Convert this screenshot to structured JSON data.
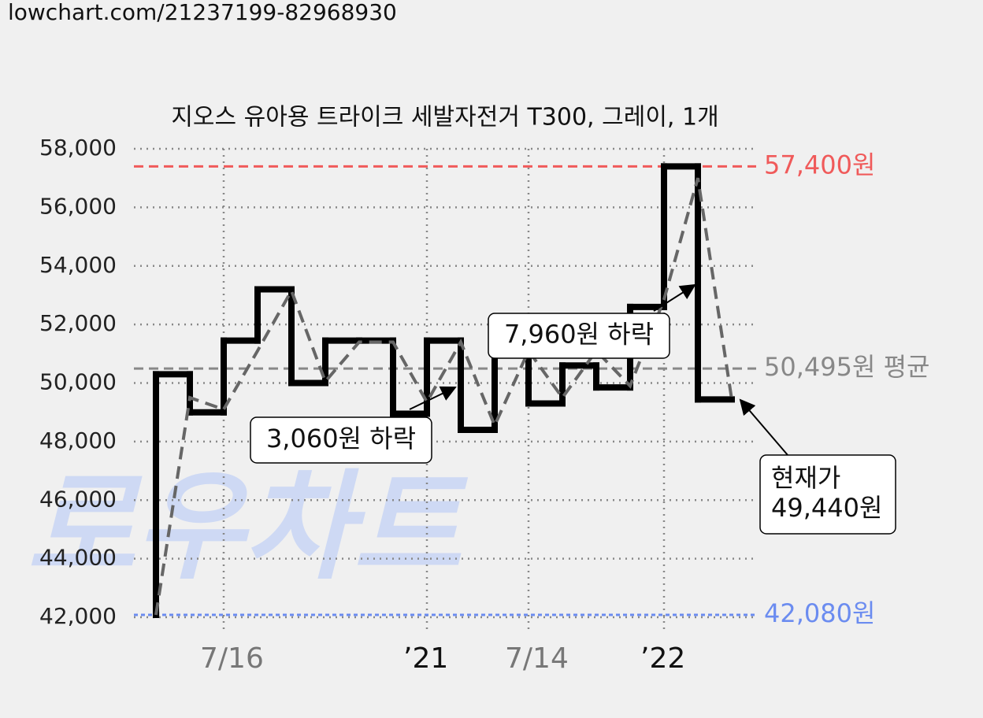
{
  "url": "lowchart.com/21237199-82968930",
  "watermark": "로우차트",
  "chart_data": {
    "type": "line",
    "title": "지오스 유아용 트라이크 세발자전거 T300, 그레이, 1개",
    "categories": [
      null,
      null,
      "7/16",
      null,
      null,
      null,
      null,
      null,
      "’21",
      null,
      null,
      "7/14",
      null,
      null,
      null,
      "’22",
      null,
      null
    ],
    "series": [
      {
        "color": "#000000",
        "style": "step",
        "values": [
          42080,
          50300,
          49000,
          51450,
          53200,
          50000,
          51450,
          51450,
          48950,
          51450,
          48400,
          51000,
          49300,
          50600,
          49850,
          52600,
          57400,
          49440
        ]
      },
      {
        "color": "#666666",
        "style": "dashed",
        "values": [
          42080,
          49500,
          49100,
          51100,
          53150,
          50050,
          51400,
          51400,
          49350,
          51400,
          48550,
          51100,
          49500,
          51100,
          49900,
          52850,
          57000,
          49440
        ]
      }
    ],
    "ylim": [
      42000,
      58000
    ],
    "yticks": [
      {
        "value": 42000,
        "label": "42,000"
      },
      {
        "value": 44000,
        "label": "44,000"
      },
      {
        "value": 46000,
        "label": "46,000"
      },
      {
        "value": 48000,
        "label": "48,000"
      },
      {
        "value": 50000,
        "label": "50,000"
      },
      {
        "value": 52000,
        "label": "52,000"
      },
      {
        "value": 54000,
        "label": "54,000"
      },
      {
        "value": 56000,
        "label": "56,000"
      },
      {
        "value": 58000,
        "label": "58,000"
      }
    ],
    "grid": true,
    "reference_lines": [
      {
        "value": 57400,
        "label": "57,400원",
        "color": "#f05a5a"
      },
      {
        "value": 50495,
        "label": "50,495원 평균",
        "color": "#888888"
      },
      {
        "value": 42080,
        "label": "42,080원",
        "color": "#6b8cf0"
      }
    ],
    "annotations": [
      {
        "lines": [
          "3,060원 하락"
        ]
      },
      {
        "lines": [
          "7,960원 하락"
        ]
      },
      {
        "lines": [
          "현재가",
          "49,440원"
        ]
      }
    ]
  }
}
